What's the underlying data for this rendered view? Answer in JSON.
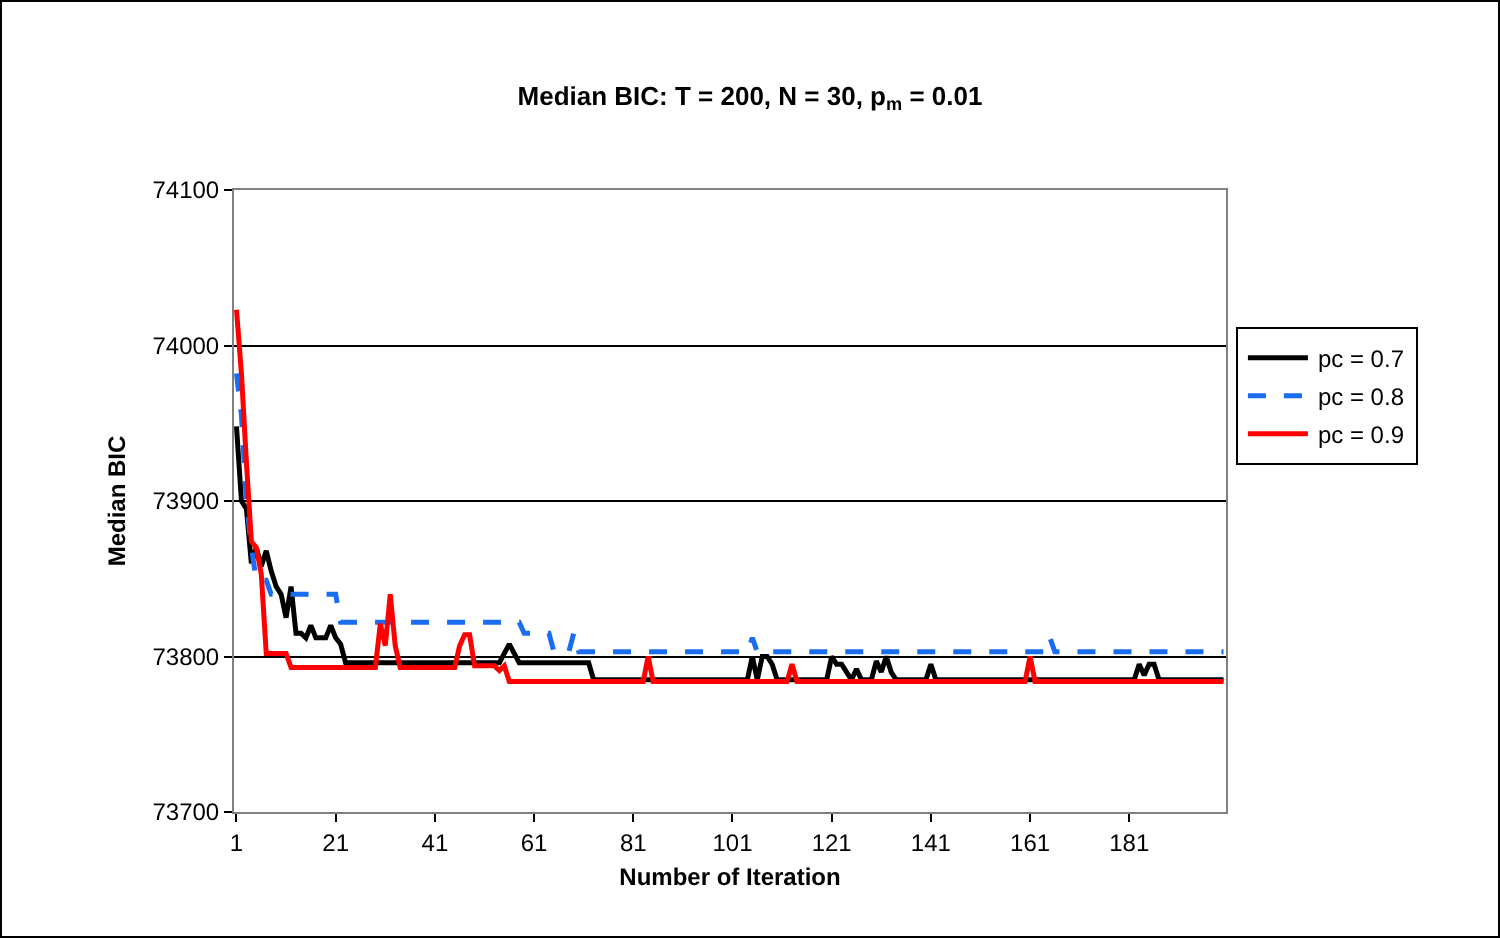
{
  "chart_data": {
    "type": "line",
    "title": "Median BIC: T = 200, N = 30, p$_{m}$ = 0.01",
    "xlabel": "Number of Iteration",
    "ylabel": "Median BIC",
    "xlim": [
      0.5,
      200.5
    ],
    "xticks": [
      1,
      21,
      41,
      61,
      81,
      101,
      121,
      141,
      161,
      181
    ],
    "ylim": [
      73700,
      74100
    ],
    "yticks": [
      73700,
      73800,
      73900,
      74000,
      74100
    ],
    "grid": "y",
    "legend": "right",
    "marker": "none",
    "series": [
      {
        "name": "pc = 0.7",
        "color": "#000000",
        "line_style": "solid",
        "x": [
          1,
          2,
          3,
          4,
          5,
          6,
          7,
          8,
          9,
          10,
          11,
          12,
          13,
          14,
          15,
          16,
          17,
          19,
          20,
          21,
          22,
          23,
          54,
          56,
          58,
          72,
          73,
          104,
          105,
          106,
          107,
          108,
          109,
          110,
          120,
          121,
          122,
          123,
          124,
          125,
          126,
          127,
          129,
          130,
          131,
          132,
          133,
          134,
          140,
          141,
          142,
          182,
          183,
          184,
          185,
          186,
          187,
          200
        ],
        "values": [
          73948,
          73900,
          73895,
          73860,
          73870,
          73858,
          73868,
          73855,
          73845,
          73840,
          73825,
          73845,
          73815,
          73815,
          73812,
          73820,
          73812,
          73812,
          73820,
          73812,
          73808,
          73796,
          73796,
          73808,
          73796,
          73796,
          73785,
          73785,
          73800,
          73785,
          73800,
          73800,
          73795,
          73785,
          73785,
          73800,
          73795,
          73795,
          73790,
          73785,
          73792,
          73785,
          73785,
          73797,
          73790,
          73800,
          73790,
          73785,
          73785,
          73795,
          73785,
          73785,
          73795,
          73788,
          73795,
          73795,
          73785,
          73785
        ]
      },
      {
        "name": "pc = 0.8",
        "color": "#1a6cf0",
        "line_style": "dashed",
        "x": [
          1,
          2,
          3,
          4,
          5,
          7,
          8,
          21,
          22,
          58,
          59,
          64,
          65,
          68,
          69,
          70,
          104,
          105,
          106,
          164,
          165,
          166,
          200
        ],
        "values": [
          73982,
          73955,
          73900,
          73870,
          73849,
          73849,
          73840,
          73840,
          73822,
          73822,
          73815,
          73815,
          73803,
          73803,
          73815,
          73803,
          73803,
          73812,
          73803,
          73803,
          73812,
          73803,
          73803
        ]
      },
      {
        "name": "pc = 0.9",
        "color": "#ff0000",
        "line_style": "solid",
        "x": [
          1,
          2,
          3,
          4,
          5,
          6,
          7,
          11,
          12,
          29,
          30,
          31,
          32,
          33,
          34,
          45,
          46,
          47,
          48,
          49,
          53,
          54,
          55,
          56,
          83,
          84,
          85,
          112,
          113,
          114,
          160,
          161,
          162,
          200
        ],
        "values": [
          74023,
          73982,
          73925,
          73874,
          73870,
          73853,
          73802,
          73802,
          73793,
          73793,
          73821,
          73807,
          73840,
          73807,
          73793,
          73793,
          73807,
          73814,
          73814,
          73794,
          73794,
          73791,
          73794,
          73784,
          73784,
          73800,
          73784,
          73784,
          73795,
          73784,
          73784,
          73800,
          73784,
          73784
        ]
      }
    ]
  }
}
